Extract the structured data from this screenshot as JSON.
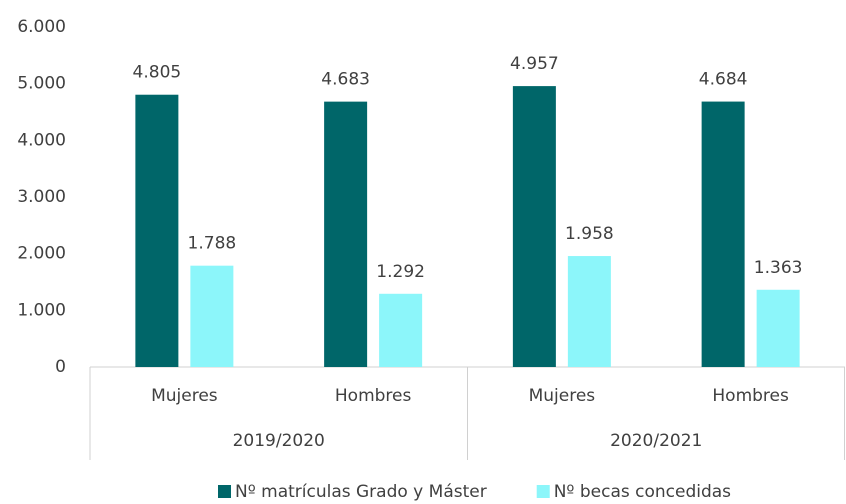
{
  "chart_data": {
    "type": "bar",
    "categories": [
      "Mujeres",
      "Hombres",
      "Mujeres",
      "Hombres"
    ],
    "groups": [
      "2019/2020",
      "2020/2021"
    ],
    "series": [
      {
        "name": "Nº matrículas Grado y Máster",
        "color": "#006669",
        "values": [
          4805,
          4683,
          4957,
          4684
        ],
        "value_labels": [
          "4.805",
          "4.683",
          "4.957",
          "4.684"
        ]
      },
      {
        "name": "Nº becas concedidas",
        "color": "#8cf6fa",
        "values": [
          1788,
          1292,
          1958,
          1363
        ],
        "value_labels": [
          "1.788",
          "1.292",
          "1.958",
          "1.363"
        ]
      }
    ],
    "ylim": [
      0,
      6000
    ],
    "yticks": [
      0,
      {
        "value": 1000,
        "label": "1.000"
      },
      {
        "value": 2000,
        "label": "2.000"
      },
      {
        "value": 3000,
        "label": "3.000"
      },
      {
        "value": 4000,
        "label": "4.000"
      },
      {
        "value": 5000,
        "label": "5.000"
      },
      {
        "value": 6000,
        "label": "6.000"
      }
    ],
    "grid": false,
    "legend": "bottom"
  }
}
